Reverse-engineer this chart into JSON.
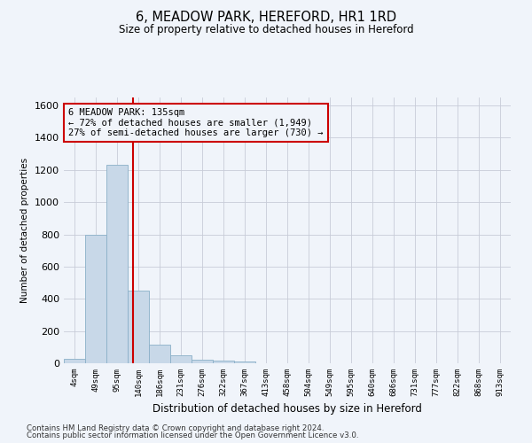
{
  "title1": "6, MEADOW PARK, HEREFORD, HR1 1RD",
  "title2": "Size of property relative to detached houses in Hereford",
  "xlabel": "Distribution of detached houses by size in Hereford",
  "ylabel": "Number of detached properties",
  "categories": [
    "4sqm",
    "49sqm",
    "95sqm",
    "140sqm",
    "186sqm",
    "231sqm",
    "276sqm",
    "322sqm",
    "367sqm",
    "413sqm",
    "458sqm",
    "504sqm",
    "549sqm",
    "595sqm",
    "640sqm",
    "686sqm",
    "731sqm",
    "777sqm",
    "822sqm",
    "868sqm",
    "913sqm"
  ],
  "values": [
    30,
    800,
    1230,
    450,
    115,
    50,
    20,
    15,
    10,
    0,
    0,
    0,
    0,
    0,
    0,
    0,
    0,
    0,
    0,
    0,
    0
  ],
  "bar_color": "#c8d8e8",
  "bar_edge_color": "#8ab0c8",
  "ylim": [
    0,
    1650
  ],
  "yticks": [
    0,
    200,
    400,
    600,
    800,
    1000,
    1200,
    1400,
    1600
  ],
  "property_line_x": 2.73,
  "annotation_title": "6 MEADOW PARK: 135sqm",
  "annotation_line1": "← 72% of detached houses are smaller (1,949)",
  "annotation_line2": "27% of semi-detached houses are larger (730) →",
  "annotation_box_color": "#cc0000",
  "footer1": "Contains HM Land Registry data © Crown copyright and database right 2024.",
  "footer2": "Contains public sector information licensed under the Open Government Licence v3.0.",
  "background_color": "#f0f4fa",
  "grid_color": "#c8ccd8",
  "fig_width": 6.0,
  "fig_height": 5.0,
  "dpi": 100
}
